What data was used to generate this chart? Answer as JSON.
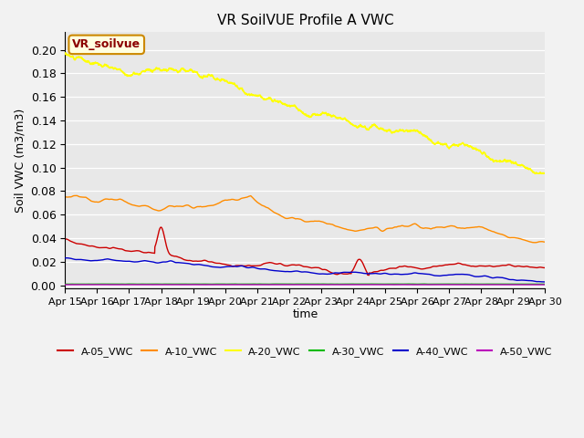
{
  "title": "VR SoilVUE Profile A VWC",
  "xlabel": "time",
  "ylabel": "Soil VWC (m3/m3)",
  "ylim": [
    -0.003,
    0.215
  ],
  "xlim": [
    0,
    15.0
  ],
  "background_color": "#e8e8e8",
  "fig_color": "#f2f2f2",
  "legend_label": "VR_soilvue",
  "series_labels": [
    "A-05_VWC",
    "A-10_VWC",
    "A-20_VWC",
    "A-30_VWC",
    "A-40_VWC",
    "A-50_VWC"
  ],
  "series_colors": [
    "#cc0000",
    "#ff8c00",
    "#ffff00",
    "#00bb00",
    "#0000cc",
    "#bb00bb"
  ],
  "xtick_labels": [
    "Apr 15",
    "Apr 16",
    "Apr 17",
    "Apr 18",
    "Apr 19",
    "Apr 20",
    "Apr 21",
    "Apr 22",
    "Apr 23",
    "Apr 24",
    "Apr 25",
    "Apr 26",
    "Apr 27",
    "Apr 28",
    "Apr 29",
    "Apr 30"
  ],
  "ytick_values": [
    0.0,
    0.02,
    0.04,
    0.06,
    0.08,
    0.1,
    0.12,
    0.14,
    0.16,
    0.18,
    0.2
  ],
  "n_points": 2160
}
